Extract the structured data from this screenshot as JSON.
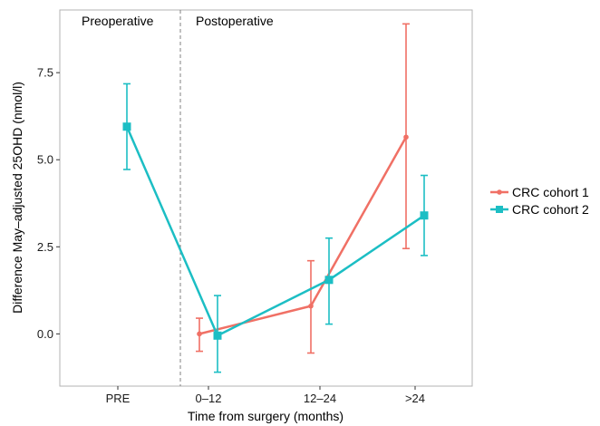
{
  "chart_data": {
    "type": "line",
    "title": "",
    "xlabel": "Time from surgery (months)",
    "ylabel": "Difference May–adjusted 25OHD (nmol/l)",
    "categories": [
      "PRE",
      "0–12",
      "12–24",
      ">24"
    ],
    "yticks": [
      "0.0",
      "2.5",
      "5.0",
      "7.5"
    ],
    "ylim": [
      -1.5,
      9.3
    ],
    "grid": false,
    "legend_position": "right",
    "annotations": [
      "Preoperative",
      "Postoperative"
    ],
    "series": [
      {
        "name": "CRC cohort 1",
        "color": "#f07065",
        "marker": "circle",
        "values": [
          null,
          0.0,
          0.8,
          5.65
        ],
        "lower": [
          null,
          -0.5,
          -0.55,
          2.45
        ],
        "upper": [
          null,
          0.45,
          2.1,
          8.9
        ]
      },
      {
        "name": "CRC cohort 2",
        "color": "#1cbec4",
        "marker": "square",
        "values": [
          5.95,
          -0.05,
          1.55,
          3.4
        ],
        "lower": [
          4.72,
          -1.1,
          0.28,
          2.25
        ],
        "upper": [
          7.18,
          1.1,
          2.75,
          4.55
        ]
      }
    ]
  }
}
